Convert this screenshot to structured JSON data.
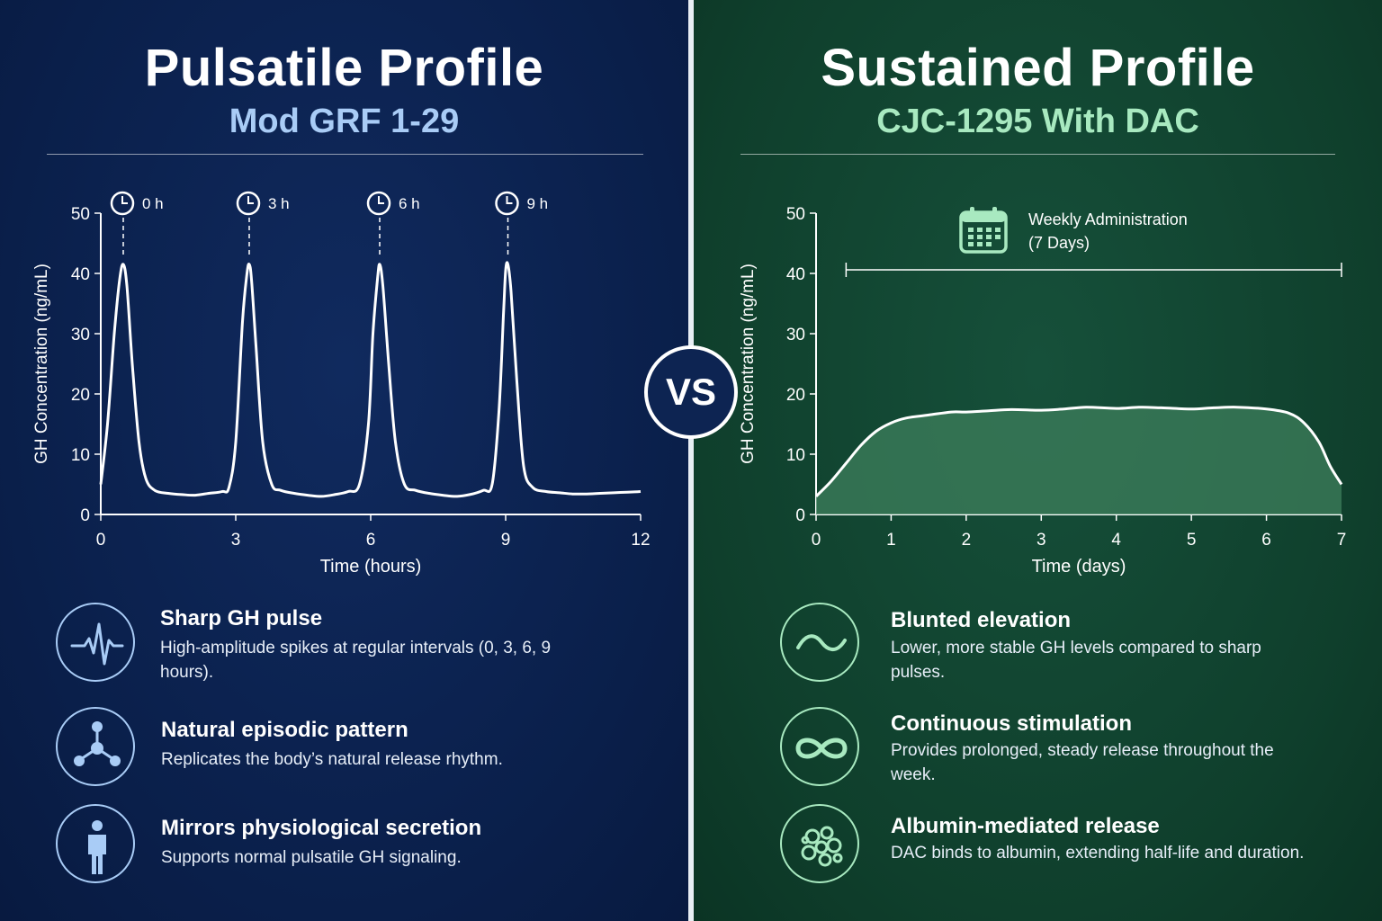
{
  "left": {
    "title": "Pulsatile Profile",
    "subtitle": "Mod GRF 1-29",
    "colors": {
      "line": "#ffffff",
      "accent": "#a9ccf6"
    },
    "features": [
      {
        "icon": "heartbeat-icon",
        "title": "Sharp GH pulse",
        "desc": "High-amplitude spikes at regular intervals (0, 3, 6, 9 hours)."
      },
      {
        "icon": "molecule-icon",
        "title": "Natural episodic pattern",
        "desc": "Replicates the body’s natural release rhythm."
      },
      {
        "icon": "person-icon",
        "title": "Mirrors physiological secretion",
        "desc": "Supports normal pulsatile GH signaling."
      }
    ]
  },
  "right": {
    "title": "Sustained Profile",
    "subtitle": "CJC-1295 With DAC",
    "colors": {
      "line": "#ffffff",
      "fill": "#3d7f5c",
      "accent": "#a8e9c0"
    },
    "annotation": {
      "icon": "calendar-icon",
      "line1": "Weekly Administration",
      "line2": "(7 Days)",
      "span": [
        0.4,
        7
      ]
    },
    "features": [
      {
        "icon": "wave-icon",
        "title": "Blunted elevation",
        "desc": "Lower, more stable GH levels compared to sharp pulses."
      },
      {
        "icon": "infinity-icon",
        "title": "Continuous stimulation",
        "desc": "Provides prolonged, steady release throughout the week."
      },
      {
        "icon": "albumin-icon",
        "title": "Albumin-mediated release",
        "desc": "DAC binds to albumin, extending half-life and duration."
      }
    ]
  },
  "vs_label": "VS",
  "chart_data": [
    {
      "type": "line",
      "xlabel": "Time (hours)",
      "ylabel": "GH Concentration (ng/mL)",
      "xlim": [
        0,
        12
      ],
      "ylim": [
        0,
        50
      ],
      "xticks": [
        0,
        3,
        6,
        9,
        12
      ],
      "yticks": [
        0,
        10,
        20,
        30,
        40,
        50
      ],
      "markers": [
        {
          "x": 0.5,
          "label": "0 h"
        },
        {
          "x": 3.3,
          "label": "3 h"
        },
        {
          "x": 6.2,
          "label": "6 h"
        },
        {
          "x": 9.05,
          "label": "9 h"
        }
      ],
      "series": [
        {
          "x": [
            0,
            0.15,
            0.3,
            0.42,
            0.5,
            0.58,
            0.7,
            0.85,
            1.0,
            1.2,
            1.5,
            1.8,
            2.1,
            2.4,
            2.7,
            2.85,
            3.0,
            3.15,
            3.25,
            3.3,
            3.35,
            3.45,
            3.6,
            3.8,
            4.0,
            4.3,
            4.6,
            4.9,
            5.2,
            5.5,
            5.75,
            5.95,
            6.05,
            6.15,
            6.2,
            6.27,
            6.4,
            6.55,
            6.75,
            7.0,
            7.3,
            7.6,
            7.9,
            8.2,
            8.5,
            8.7,
            8.85,
            8.95,
            9.0,
            9.05,
            9.12,
            9.25,
            9.4,
            9.6,
            9.9,
            10.2,
            10.5,
            10.8,
            11.1,
            11.4,
            11.7,
            12.0
          ],
          "y": [
            5,
            15,
            30,
            39,
            41.5,
            38,
            25,
            12,
            6,
            4,
            3.5,
            3.3,
            3.2,
            3.5,
            3.8,
            4.5,
            12,
            32,
            40,
            41.5,
            39,
            28,
            12,
            5,
            4,
            3.5,
            3.2,
            3.0,
            3.3,
            3.8,
            5,
            15,
            30,
            39,
            41.5,
            38,
            25,
            12,
            5,
            4,
            3.5,
            3.2,
            3.0,
            3.3,
            4,
            5,
            17,
            33,
            40.5,
            41.5,
            37,
            22,
            8,
            4.5,
            3.8,
            3.6,
            3.4,
            3.4,
            3.5,
            3.6,
            3.7,
            3.8
          ]
        }
      ]
    },
    {
      "type": "area",
      "xlabel": "Time (days)",
      "ylabel": "GH Concentration (ng/mL)",
      "xlim": [
        0,
        7
      ],
      "ylim": [
        0,
        50
      ],
      "xticks": [
        0,
        1,
        2,
        3,
        4,
        5,
        6,
        7
      ],
      "yticks": [
        0,
        10,
        20,
        30,
        40,
        50
      ],
      "series": [
        {
          "x": [
            0,
            0.2,
            0.4,
            0.6,
            0.8,
            1.0,
            1.2,
            1.5,
            1.8,
            2.0,
            2.3,
            2.6,
            3.0,
            3.3,
            3.6,
            4.0,
            4.3,
            4.6,
            5.0,
            5.3,
            5.6,
            6.0,
            6.3,
            6.5,
            6.7,
            6.85,
            7.0
          ],
          "y": [
            3,
            5.5,
            8.5,
            11.5,
            13.8,
            15.2,
            16,
            16.5,
            17,
            17,
            17.2,
            17.4,
            17.3,
            17.5,
            17.8,
            17.6,
            17.8,
            17.7,
            17.5,
            17.7,
            17.8,
            17.5,
            16.8,
            15.2,
            12,
            8,
            5
          ]
        }
      ]
    }
  ]
}
